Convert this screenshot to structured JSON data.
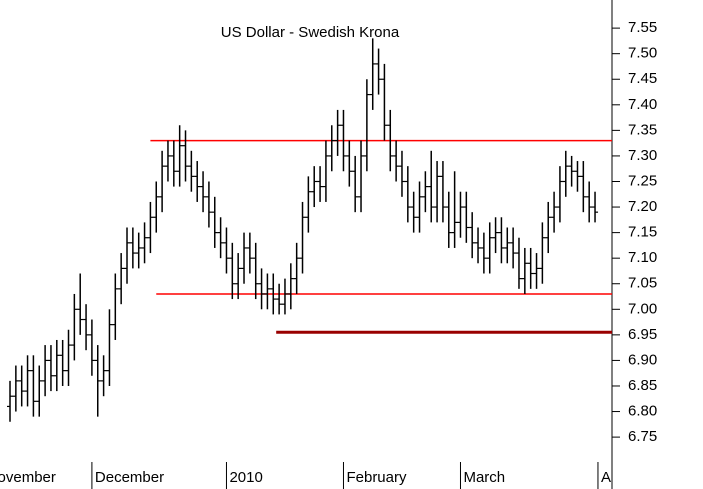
{
  "chart_data": {
    "type": "ohlc",
    "title": "US Dollar - Swedish Krona",
    "color": "#000000",
    "open": [
      6.81,
      6.83,
      6.86,
      6.84,
      6.88,
      6.82,
      6.86,
      6.9,
      6.87,
      6.91,
      6.88,
      6.93,
      7.0,
      6.98,
      6.95,
      6.9,
      6.86,
      6.88,
      6.97,
      7.04,
      7.08,
      7.13,
      7.11,
      7.12,
      7.14,
      7.18,
      7.22,
      7.28,
      7.3,
      7.27,
      7.32,
      7.28,
      7.26,
      7.24,
      7.22,
      7.19,
      7.15,
      7.13,
      7.1,
      7.05,
      7.08,
      7.12,
      7.1,
      7.05,
      7.03,
      7.04,
      7.02,
      7.01,
      7.03,
      7.06,
      7.1,
      7.18,
      7.23,
      7.25,
      7.24,
      7.3,
      7.33,
      7.36,
      7.3,
      7.27,
      7.22,
      7.3,
      7.42,
      7.48,
      7.45,
      7.36,
      7.3,
      7.28,
      7.25,
      7.2,
      7.18,
      7.22,
      7.24,
      7.2,
      7.26,
      7.2,
      7.15,
      7.17,
      7.2,
      7.16,
      7.13,
      7.12,
      7.1,
      7.14,
      7.15,
      7.12,
      7.13,
      7.11,
      7.06,
      7.09,
      7.07,
      7.08,
      7.14,
      7.18,
      7.2,
      7.25,
      7.28,
      7.27,
      7.26,
      7.22,
      7.2
    ],
    "high": [
      6.86,
      6.89,
      6.89,
      6.91,
      6.91,
      6.89,
      6.93,
      6.93,
      6.94,
      6.94,
      6.96,
      7.03,
      7.07,
      7.01,
      6.98,
      6.93,
      6.91,
      7.0,
      7.07,
      7.11,
      7.16,
      7.16,
      7.15,
      7.17,
      7.21,
      7.25,
      7.31,
      7.33,
      7.33,
      7.36,
      7.35,
      7.31,
      7.29,
      7.27,
      7.25,
      7.22,
      7.18,
      7.16,
      7.13,
      7.11,
      7.15,
      7.15,
      7.13,
      7.08,
      7.07,
      7.07,
      7.05,
      7.06,
      7.09,
      7.13,
      7.21,
      7.26,
      7.28,
      7.28,
      7.33,
      7.36,
      7.39,
      7.39,
      7.33,
      7.3,
      7.33,
      7.45,
      7.53,
      7.51,
      7.48,
      7.39,
      7.33,
      7.31,
      7.28,
      7.23,
      7.25,
      7.27,
      7.31,
      7.29,
      7.29,
      7.23,
      7.27,
      7.23,
      7.23,
      7.19,
      7.16,
      7.15,
      7.17,
      7.18,
      7.18,
      7.16,
      7.16,
      7.14,
      7.12,
      7.12,
      7.11,
      7.17,
      7.21,
      7.23,
      7.28,
      7.31,
      7.3,
      7.29,
      7.29,
      7.25,
      7.23
    ],
    "low": [
      6.78,
      6.8,
      6.81,
      6.81,
      6.79,
      6.79,
      6.83,
      6.84,
      6.84,
      6.85,
      6.85,
      6.9,
      6.95,
      6.92,
      6.87,
      6.79,
      6.83,
      6.85,
      6.94,
      7.01,
      7.05,
      7.08,
      7.08,
      7.09,
      7.11,
      7.15,
      7.19,
      7.25,
      7.24,
      7.24,
      7.25,
      7.23,
      7.21,
      7.19,
      7.16,
      7.12,
      7.1,
      7.07,
      7.02,
      7.02,
      7.05,
      7.07,
      7.02,
      7.0,
      7.0,
      6.99,
      6.99,
      6.99,
      7.0,
      7.03,
      7.07,
      7.15,
      7.2,
      7.21,
      7.21,
      7.27,
      7.3,
      7.27,
      7.24,
      7.19,
      7.19,
      7.27,
      7.39,
      7.42,
      7.33,
      7.27,
      7.25,
      7.22,
      7.17,
      7.15,
      7.15,
      7.19,
      7.17,
      7.17,
      7.17,
      7.12,
      7.12,
      7.14,
      7.13,
      7.1,
      7.09,
      7.07,
      7.07,
      7.11,
      7.09,
      7.09,
      7.08,
      7.04,
      7.03,
      7.04,
      7.04,
      7.05,
      7.11,
      7.15,
      7.17,
      7.22,
      7.24,
      7.23,
      7.19,
      7.17,
      7.17
    ],
    "close": [
      6.83,
      6.86,
      6.84,
      6.88,
      6.82,
      6.86,
      6.9,
      6.87,
      6.91,
      6.88,
      6.93,
      7.0,
      6.98,
      6.95,
      6.9,
      6.86,
      6.88,
      6.97,
      7.04,
      7.08,
      7.13,
      7.11,
      7.12,
      7.14,
      7.18,
      7.22,
      7.28,
      7.3,
      7.27,
      7.32,
      7.28,
      7.26,
      7.24,
      7.22,
      7.19,
      7.15,
      7.13,
      7.1,
      7.05,
      7.08,
      7.12,
      7.1,
      7.05,
      7.03,
      7.04,
      7.02,
      7.01,
      7.03,
      7.06,
      7.1,
      7.18,
      7.23,
      7.25,
      7.24,
      7.3,
      7.33,
      7.36,
      7.3,
      7.27,
      7.22,
      7.3,
      7.42,
      7.48,
      7.45,
      7.36,
      7.3,
      7.28,
      7.25,
      7.2,
      7.18,
      7.22,
      7.24,
      7.2,
      7.26,
      7.2,
      7.15,
      7.17,
      7.2,
      7.16,
      7.13,
      7.12,
      7.1,
      7.14,
      7.15,
      7.12,
      7.13,
      7.11,
      7.06,
      7.09,
      7.07,
      7.08,
      7.14,
      7.18,
      7.2,
      7.25,
      7.28,
      7.27,
      7.26,
      7.22,
      7.2,
      7.19
    ],
    "xlim": [
      -1.71,
      102.9
    ],
    "xticks": [
      {
        "value": -4.5,
        "label": "November"
      },
      {
        "value": 14,
        "label": "December"
      },
      {
        "value": 37,
        "label": "2010"
      },
      {
        "value": 57,
        "label": "February"
      },
      {
        "value": 77,
        "label": "March"
      },
      {
        "value": 100.5,
        "label": "April"
      }
    ],
    "ylim": [
      6.715,
      7.605
    ],
    "yticks": [
      {
        "value": 6.75,
        "label": "6.75"
      },
      {
        "value": 6.8,
        "label": "6.80"
      },
      {
        "value": 6.85,
        "label": "6.85"
      },
      {
        "value": 6.9,
        "label": "6.90"
      },
      {
        "value": 6.95,
        "label": "6.95"
      },
      {
        "value": 7.0,
        "label": "7.00"
      },
      {
        "value": 7.05,
        "label": "7.05"
      },
      {
        "value": 7.1,
        "label": "7.10"
      },
      {
        "value": 7.15,
        "label": "7.15"
      },
      {
        "value": 7.2,
        "label": "7.20"
      },
      {
        "value": 7.25,
        "label": "7.25"
      },
      {
        "value": 7.3,
        "label": "7.30"
      },
      {
        "value": 7.35,
        "label": "7.35"
      },
      {
        "value": 7.4,
        "label": "7.40"
      },
      {
        "value": 7.45,
        "label": "7.45"
      },
      {
        "value": 7.5,
        "label": "7.50"
      },
      {
        "value": 7.55,
        "label": "7.55"
      }
    ],
    "lines": [
      {
        "value": 7.33,
        "start": 24,
        "color": "#ff0000"
      },
      {
        "value": 7.03,
        "start": 25,
        "color": "#ff0000"
      },
      {
        "value": 6.955,
        "start": 45.5,
        "color": "#990000"
      }
    ]
  }
}
